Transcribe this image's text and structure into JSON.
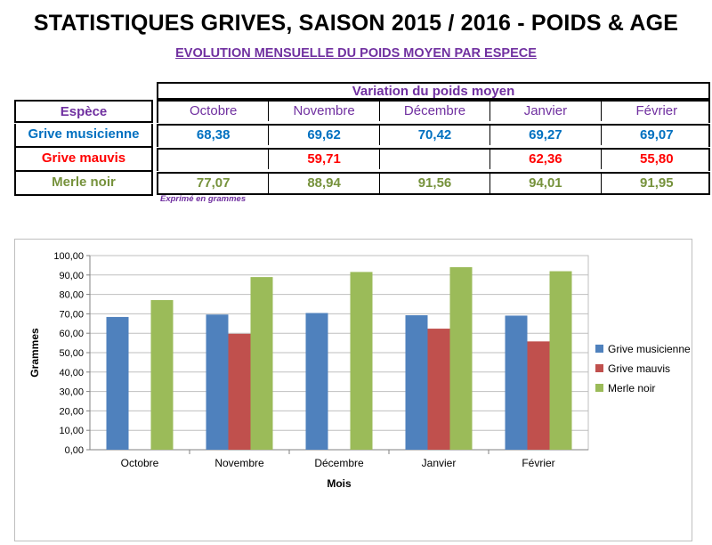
{
  "title": "STATISTIQUES GRIVES, SAISON 2015 / 2016 - POIDS & AGE",
  "subtitle": "EVOLUTION MENSUELLE DU POIDS MOYEN PAR ESPECE",
  "table": {
    "group_header": "Variation du poids moyen",
    "species_header": "Espèce",
    "months": [
      "Octobre",
      "Novembre",
      "Décembre",
      "Janvier",
      "Février"
    ],
    "rows": [
      {
        "species": "Grive musicienne",
        "color": "#0070c0",
        "values": [
          "68,38",
          "69,62",
          "70,42",
          "69,27",
          "69,07"
        ]
      },
      {
        "species": "Grive mauvis",
        "color": "#ff0000",
        "values": [
          "",
          "59,71",
          "",
          "62,36",
          "55,80"
        ]
      },
      {
        "species": "Merle noir",
        "color": "#76923c",
        "values": [
          "77,07",
          "88,94",
          "91,56",
          "94,01",
          "91,95"
        ]
      }
    ],
    "note": "Exprimé en grammes"
  },
  "chart_data": {
    "type": "bar",
    "categories": [
      "Octobre",
      "Novembre",
      "Décembre",
      "Janvier",
      "Février"
    ],
    "series": [
      {
        "name": "Grive musicienne",
        "color": "#4f81bd",
        "values": [
          68.38,
          69.62,
          70.42,
          69.27,
          69.07
        ]
      },
      {
        "name": "Grive mauvis",
        "color": "#c0504d",
        "values": [
          null,
          59.71,
          null,
          62.36,
          55.8
        ]
      },
      {
        "name": "Merle noir",
        "color": "#9bbb59",
        "values": [
          77.07,
          88.94,
          91.56,
          94.01,
          91.95
        ]
      }
    ],
    "xlabel": "Mois",
    "ylabel": "Grammes",
    "ylim": [
      0,
      100
    ],
    "yticks": [
      "0,00",
      "10,00",
      "20,00",
      "30,00",
      "40,00",
      "50,00",
      "60,00",
      "70,00",
      "80,00",
      "90,00",
      "100,00"
    ],
    "grid": true,
    "legend": "right"
  }
}
